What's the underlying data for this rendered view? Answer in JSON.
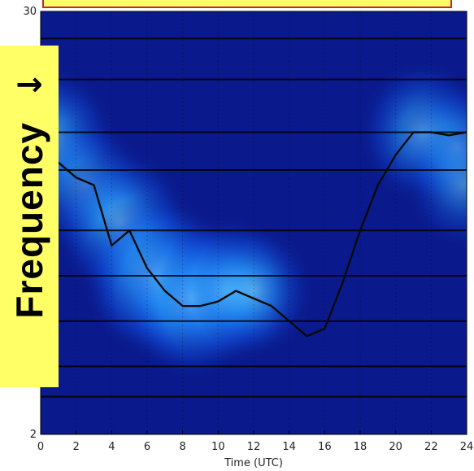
{
  "chart_data": {
    "type": "heatmap",
    "title": "",
    "xlabel": "Time (UTC)",
    "ylabel": "Frequency",
    "xlim": [
      0,
      24
    ],
    "ylim": [
      2,
      30
    ],
    "x_ticks": [
      "0",
      "2",
      "4",
      "6",
      "8",
      "10",
      "12",
      "14",
      "16",
      "18",
      "20",
      "22",
      "24"
    ],
    "y_ticks": [
      "2",
      "30"
    ],
    "colormap": "blues",
    "hotspots": [
      {
        "x": 0.5,
        "y": 21.5,
        "intensity": 0.7
      },
      {
        "x": 2.5,
        "y": 18.5,
        "intensity": 0.55
      },
      {
        "x": 4.5,
        "y": 16.0,
        "intensity": 0.75
      },
      {
        "x": 6.5,
        "y": 12.5,
        "intensity": 0.95
      },
      {
        "x": 8.5,
        "y": 11.0,
        "intensity": 0.9
      },
      {
        "x": 10.5,
        "y": 11.5,
        "intensity": 0.75
      },
      {
        "x": 12.0,
        "y": 11.5,
        "intensity": 0.55
      },
      {
        "x": 21.5,
        "y": 22.0,
        "intensity": 0.65
      },
      {
        "x": 23.5,
        "y": 21.0,
        "intensity": 0.5
      },
      {
        "x": 23.8,
        "y": 18.5,
        "intensity": 0.45
      }
    ],
    "series": [
      {
        "x": [
          0,
          1,
          2,
          3,
          4,
          5,
          6,
          7,
          8,
          9,
          10,
          11,
          12,
          13,
          14,
          15,
          16,
          17,
          18,
          19,
          20,
          21,
          22,
          23,
          24
        ],
        "values": [
          21.5,
          20.0,
          19.0,
          18.5,
          14.5,
          15.5,
          13.0,
          11.5,
          10.5,
          10.5,
          10.8,
          11.5,
          11.0,
          10.5,
          9.5,
          8.5,
          9.0,
          12.0,
          15.5,
          18.5,
          20.5,
          22.0,
          22.0,
          21.8,
          22.0
        ]
      }
    ],
    "h_grid_y": [
      4.5,
      6.5,
      9.5,
      12.5,
      15.5,
      19.5,
      22.0,
      25.5,
      28.2
    ]
  },
  "overlay": {
    "frequency_label": "Frequency",
    "arrow": "→"
  },
  "colors": {
    "background": "#0a1a8c",
    "line": "#0a0a0a",
    "label_bg": "#ffff66",
    "title_border": "#d0203a"
  }
}
